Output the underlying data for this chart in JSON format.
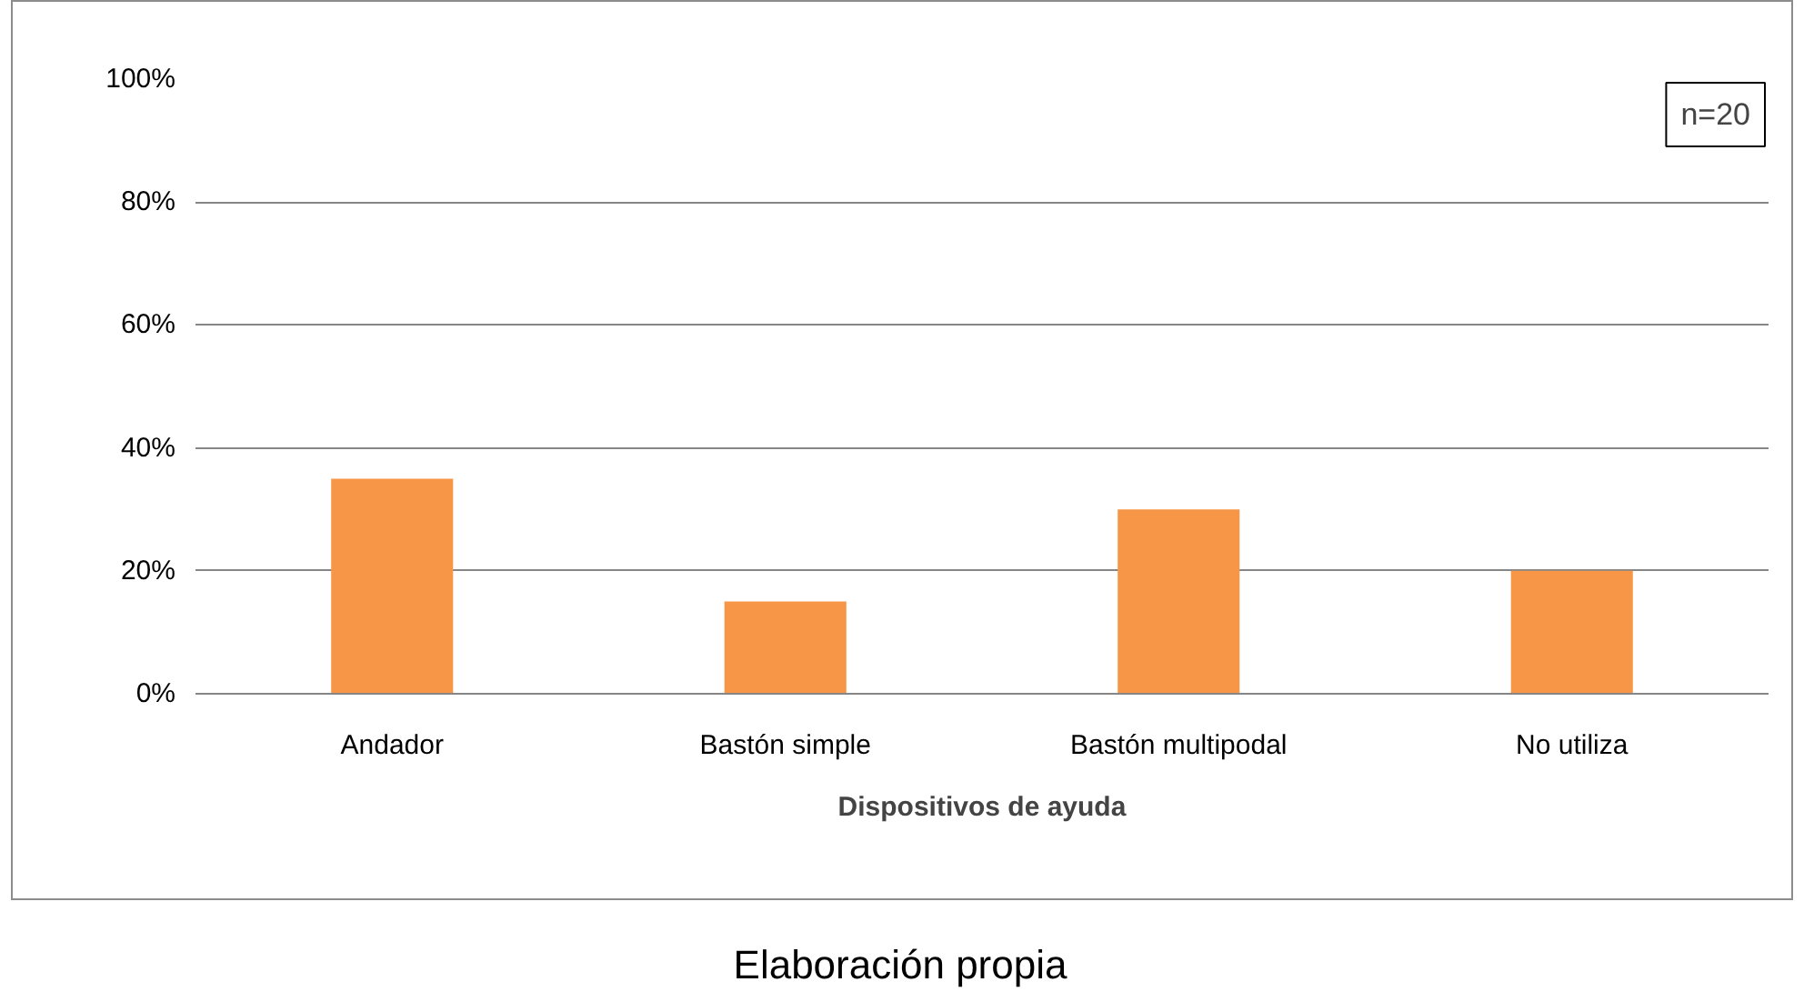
{
  "chart_data": {
    "type": "bar",
    "xlabel": "Dispositivos de ayuda",
    "categories": [
      "Andador",
      "Bastón simple",
      "Bastón multipodal",
      "No utiliza"
    ],
    "values": [
      35,
      15,
      30,
      20
    ],
    "color": "#f79646",
    "ylim": [
      0,
      100
    ],
    "yticks": [
      {
        "value": 0,
        "label": "0%"
      },
      {
        "value": 20,
        "label": "20%"
      },
      {
        "value": 40,
        "label": "40%"
      },
      {
        "value": 60,
        "label": "60%"
      },
      {
        "value": 80,
        "label": "80%"
      },
      {
        "value": 100,
        "label": "100%"
      }
    ],
    "grid": "y",
    "annotations": [
      "n=20",
      "Elaboración propia"
    ]
  }
}
